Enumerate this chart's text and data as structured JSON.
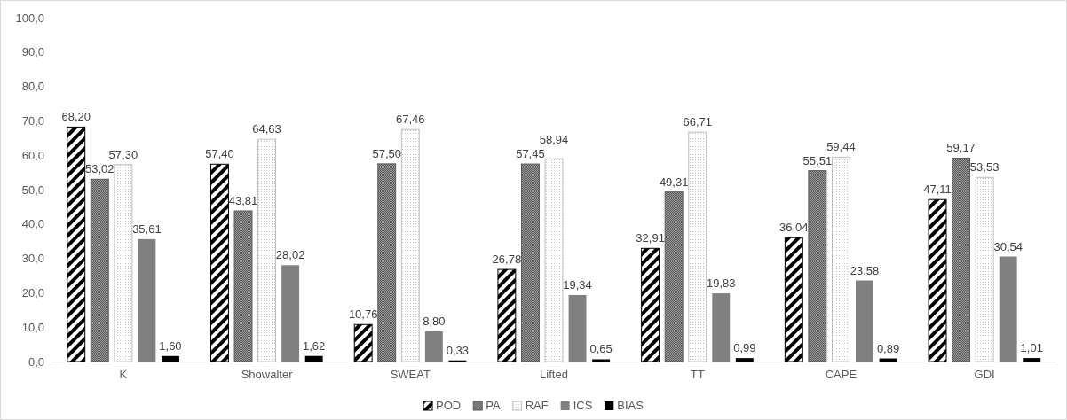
{
  "chart_data": {
    "type": "bar",
    "categories": [
      "K",
      "Showalter",
      "SWEAT",
      "Lifted",
      "TT",
      "CAPE",
      "GDI"
    ],
    "series": [
      {
        "name": "POD",
        "color": "#000000",
        "values": [
          68.2,
          57.4,
          10.76,
          26.78,
          32.91,
          36.04,
          47.11
        ],
        "value_labels": [
          "68,20",
          "57,40",
          "10,76",
          "26,78",
          "32,91",
          "36,04",
          "47,11"
        ]
      },
      {
        "name": "PA",
        "color": "#595959",
        "values": [
          53.02,
          43.81,
          57.5,
          57.45,
          49.31,
          55.51,
          59.17
        ],
        "value_labels": [
          "53,02",
          "43,81",
          "57,50",
          "57,45",
          "49,31",
          "55,51",
          "59,17"
        ]
      },
      {
        "name": "RAF",
        "color": "#bfbfbf",
        "values": [
          57.3,
          64.63,
          67.46,
          58.94,
          66.71,
          59.44,
          53.53
        ],
        "value_labels": [
          "57,30",
          "64,63",
          "67,46",
          "58,94",
          "66,71",
          "59,44",
          "53,53"
        ]
      },
      {
        "name": "ICS",
        "color": "#808080",
        "values": [
          35.61,
          28.02,
          8.8,
          19.34,
          19.83,
          23.58,
          30.54
        ],
        "value_labels": [
          "35,61",
          "28,02",
          "8,80",
          "19,34",
          "19,83",
          "23,58",
          "30,54"
        ]
      },
      {
        "name": "BIAS",
        "color": "#000000",
        "values": [
          1.6,
          1.62,
          0.33,
          0.65,
          0.99,
          0.89,
          1.01
        ],
        "value_labels": [
          "1,60",
          "1,62",
          "0,33",
          "0,65",
          "0,99",
          "0,89",
          "1,01"
        ]
      }
    ],
    "ylim": [
      0,
      100
    ],
    "yticks": [
      {
        "value": 0,
        "label": "0,0"
      },
      {
        "value": 10,
        "label": "10,0"
      },
      {
        "value": 20,
        "label": "20,0"
      },
      {
        "value": 30,
        "label": "30,0"
      },
      {
        "value": 40,
        "label": "40,0"
      },
      {
        "value": 50,
        "label": "50,0"
      },
      {
        "value": 60,
        "label": "60,0"
      },
      {
        "value": 70,
        "label": "70,0"
      },
      {
        "value": 80,
        "label": "80,0"
      },
      {
        "value": 90,
        "label": "90,0"
      },
      {
        "value": 100,
        "label": "100,0"
      }
    ],
    "grid": false,
    "legend": "bottom"
  }
}
